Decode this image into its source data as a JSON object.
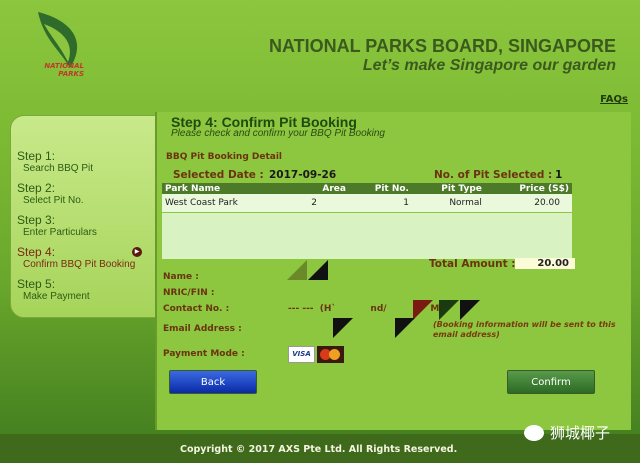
{
  "header": {
    "logo_text": "NATIONAL PARKS",
    "org": "NATIONAL PARKS BOARD, SINGAPORE",
    "tagline": "Let’s make Singapore our garden",
    "faq": "FAQs"
  },
  "steps": [
    {
      "h": "Step 1:",
      "s": "Search BBQ Pit"
    },
    {
      "h": "Step 2:",
      "s": "Select Pit No."
    },
    {
      "h": "Step 3:",
      "s": "Enter Particulars"
    },
    {
      "h": "Step 4:",
      "s": "Confirm BBQ Pit Booking",
      "active": true
    },
    {
      "h": "Step 5:",
      "s": "Make Payment"
    }
  ],
  "main": {
    "title": "Step 4: Confirm Pit Booking",
    "subtitle": "Please check and confirm your BBQ Pit Booking",
    "section": "BBQ Pit Booking Detail",
    "date_label": "Selected Date :",
    "date": "2017-09-26",
    "pits_label": "No. of Pit Selected :",
    "pits": "1",
    "columns": [
      "Park Name",
      "Area",
      "Pit No.",
      "Pit Type",
      "Price (S$)"
    ],
    "rows": [
      [
        "West Coast Park",
        "2",
        "1",
        "Normal",
        "20.00"
      ]
    ],
    "total_label": "Total Amount :",
    "total": "20.00",
    "name_label": "Name :",
    "nric_label": "NRIC/FIN :",
    "contact_label": "Contact No. :",
    "contact_value": "--- ---  (H`           nd/              M)",
    "email_label": "Email Address :",
    "email_note": "(Booking information will be sent to this email address)",
    "payment_label": "Payment Mode :",
    "payment_methods": [
      "VISA",
      "MasterCard"
    ],
    "back": "Back",
    "confirm": "Confirm"
  },
  "footer": {
    "copyright": "Copyright © 2017 AXS Pte Ltd. All Rights Reserved.",
    "watermark": "狮城椰子"
  }
}
